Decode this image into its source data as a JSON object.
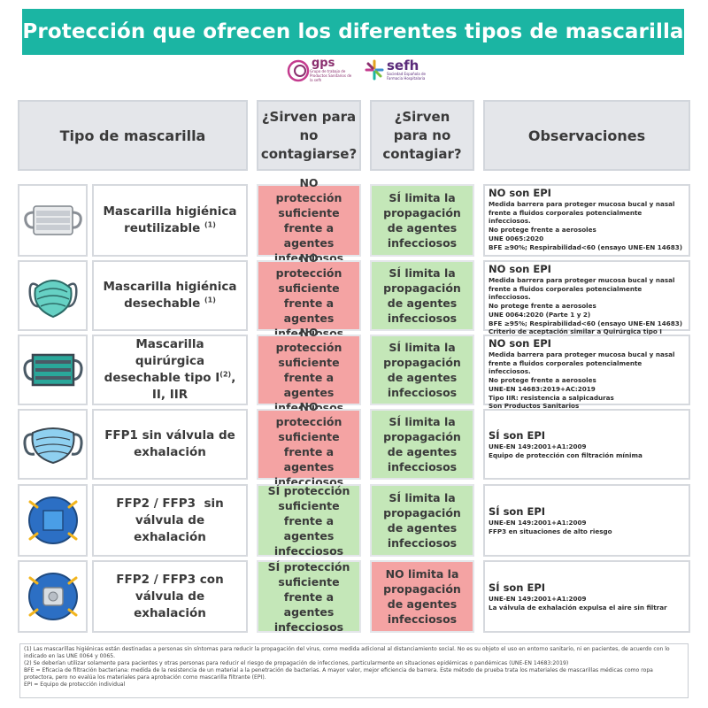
{
  "title": "Protección que ofrecen los diferentes tipos de mascarilla",
  "logos": {
    "gps_name": "gps",
    "gps_sub": "Grupo de trabajo de Productos Sanitarios de la sefh",
    "sefh_name": "sefh",
    "sefh_sub": "Sociedad Española de Farmacia Hospitalaria"
  },
  "headers": {
    "type": "Tipo de mascarilla",
    "self_protect": "¿Sirven para no contagiarse?",
    "not_spread": "¿Sirven para no contagiar?",
    "observations": "Observaciones"
  },
  "rows": [
    {
      "icon": "hygienic-reusable-mask-icon",
      "name": "Mascarilla higiénica reutilizable",
      "name_sup": "(1)",
      "self": "NO protección suficiente frente a agentes infecciosos",
      "self_status": "no",
      "spread": "SÍ limita la propagación de agentes infecciosos",
      "spread_status": "yes",
      "obs_title": "NO son EPI",
      "obs_lines": [
        "Medida barrera para proteger mucosa bucal y nasal frente a fluidos corporales potencialmente infecciosos.",
        "No protege frente a aerosoles",
        "UNE 0065:2020",
        "BFE ≥90%; Respirabilidad<60 (ensayo UNE-EN 14683)"
      ]
    },
    {
      "icon": "hygienic-disposable-mask-icon",
      "name": "Mascarilla higiénica desechable",
      "name_sup": "(1)",
      "self": "NO protección suficiente frente a agentes infecciosos",
      "self_status": "no",
      "spread": "SÍ limita la propagación de agentes infecciosos",
      "spread_status": "yes",
      "obs_title": "NO son EPI",
      "obs_lines": [
        "Medida barrera para proteger mucosa bucal y nasal frente a fluidos corporales potencialmente infecciosos.",
        "No protege frente a aerosoles",
        "UNE 0064:2020 (Parte 1 y 2)",
        "BFE ≥95%; Respirabilidad<60 (ensayo UNE-EN 14683)",
        "Criterio de aceptación similar a Quirúrgica tipo I"
      ]
    },
    {
      "icon": "surgical-mask-icon",
      "name_part1": "Mascarilla quirúrgica desechable tipo I",
      "name_sup": "(2)",
      "name_part2": ", II, IIR",
      "self": "NO protección suficiente frente a agentes infecciosos",
      "self_status": "no",
      "spread": "SÍ limita la propagación de agentes infecciosos",
      "spread_status": "yes",
      "obs_title": "NO son EPI",
      "obs_lines": [
        "Medida barrera para proteger mucosa bucal y nasal frente a fluidos corporales potencialmente infecciosos.",
        "No protege frente a aerosoles",
        "UNE-EN 14683:2019+AC:2019",
        "Tipo IIR: resistencia a salpicaduras",
        "Son Productos Sanitarios"
      ]
    },
    {
      "icon": "ffp1-mask-icon",
      "name": "FFP1 sin válvula de exhalación",
      "self": "NO protección suficiente frente a agentes infecciosos",
      "self_status": "no",
      "spread": "SÍ limita la propagación de agentes infecciosos",
      "spread_status": "yes",
      "obs_title": "SÍ son EPI",
      "obs_lines": [
        "UNE-EN 149:2001+A1:2009",
        "Equipo de protección con filtración mínima"
      ]
    },
    {
      "icon": "ffp2-ffp3-mask-icon",
      "name": "FFP2 / FFP3  sin válvula de exhalación",
      "self": "SÍ protección suficiente frente a agentes infecciosos",
      "self_status": "yes",
      "spread": "SÍ limita la propagación de agentes infecciosos",
      "spread_status": "yes",
      "obs_title": "SÍ son EPI",
      "obs_lines": [
        "UNE-EN 149:2001+A1:2009",
        "FFP3 en situaciones de alto riesgo"
      ]
    },
    {
      "icon": "ffp2-ffp3-valve-mask-icon",
      "name": "FFP2 / FFP3 con válvula de exhalación",
      "self": "SÍ protección suficiente frente a agentes infecciosos",
      "self_status": "yes",
      "spread": "NO limita la propagación de agentes infecciosos",
      "spread_status": "no",
      "obs_title": "SÍ son EPI",
      "obs_lines": [
        "UNE-EN 149:2001+A1:2009",
        "La válvula de exhalación expulsa el aire sin filtrar"
      ]
    }
  ],
  "footnotes": [
    "(1) Las mascarillas higiénicas están destinadas a personas sin síntomas para reducir la propagación del virus, como medida adicional al distanciamiento social. No es su objeto el uso en entorno sanitario, ni en pacientes, de acuerdo con lo indicado en las UNE 0064 y 0065.",
    "(2) Se deberían utilizar solamente para pacientes y otras personas para reducir el riesgo de propagación de infecciones, particularmente en situaciones epidémicas o pandémicas (UNE-EN 14683:2019)",
    "BFE = Eficacia de filtración bacteriana: medida de la resistencia de un material a la penetración de bacterias. A mayor valor, mejor eficiencia de barrera. Este método de prueba trata los materiales de mascarillas médicas como ropa protectora, pero no evalúa los materiales para aprobación como mascarilla filtrante (EPI).",
    "EPI = Equipo de protección individual"
  ],
  "colors": {
    "banner": "#1bb5a3",
    "no": "#f4a3a3",
    "yes": "#c4e7b8",
    "header_bg": "#e4e6ea"
  }
}
